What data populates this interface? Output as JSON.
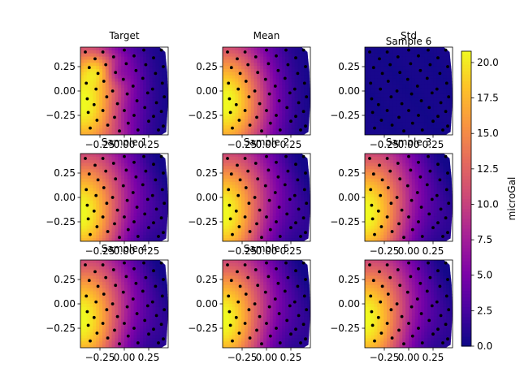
{
  "chart_data": {
    "type": "heatmap",
    "panels": [
      {
        "title": "Target",
        "field": "target"
      },
      {
        "title": "Mean",
        "field": "mean"
      },
      {
        "title": "Std",
        "field": "std",
        "overlay_title": "Sample 6"
      },
      {
        "title": "Sample 1",
        "field": "sample"
      },
      {
        "title": "Sample 2",
        "field": "sample"
      },
      {
        "title": "Sample 3",
        "field": "sample"
      },
      {
        "title": "Sample 4",
        "field": "sample"
      },
      {
        "title": "Sample 5",
        "field": "sample"
      },
      {
        "title": "",
        "field": "sample"
      }
    ],
    "x_range": [
      -0.45,
      0.45
    ],
    "y_range": [
      -0.45,
      0.45
    ],
    "x_ticks": [
      -0.25,
      0.0,
      0.25
    ],
    "x_tick_labels": [
      "−0.25",
      "0.00",
      "0.25"
    ],
    "y_ticks": [
      0.25,
      0.0,
      -0.25
    ],
    "y_tick_labels": [
      "0.25",
      "0.00",
      "−0.25"
    ],
    "colorbar": {
      "label": "microGal",
      "range": [
        0,
        20.8
      ],
      "ticks": [
        0.0,
        2.5,
        5.0,
        7.5,
        10.0,
        12.5,
        15.0,
        17.5,
        20.0
      ],
      "tick_labels": [
        "0.0",
        "2.5",
        "5.0",
        "7.5",
        "10.0",
        "12.5",
        "15.0",
        "17.5",
        "20.0"
      ],
      "colormap": "plasma"
    },
    "observation_points": [
      [
        -0.4,
        0.4
      ],
      [
        -0.36,
        0.24
      ],
      [
        -0.39,
        0.08
      ],
      [
        -0.38,
        -0.08
      ],
      [
        -0.37,
        -0.22
      ],
      [
        -0.35,
        -0.38
      ],
      [
        -0.3,
        0.33
      ],
      [
        -0.27,
        0.18
      ],
      [
        -0.29,
        0.02
      ],
      [
        -0.31,
        -0.14
      ],
      [
        -0.28,
        -0.3
      ],
      [
        -0.22,
        0.4
      ],
      [
        -0.19,
        0.27
      ],
      [
        -0.21,
        0.1
      ],
      [
        -0.18,
        -0.06
      ],
      [
        -0.22,
        -0.2
      ],
      [
        -0.17,
        -0.35
      ],
      [
        -0.11,
        0.35
      ],
      [
        -0.09,
        0.19
      ],
      [
        -0.12,
        0.0
      ],
      [
        -0.07,
        -0.13
      ],
      [
        -0.1,
        -0.27
      ],
      [
        -0.05,
        -0.41
      ],
      [
        0.0,
        0.42
      ],
      [
        0.02,
        0.28
      ],
      [
        -0.01,
        0.12
      ],
      [
        0.03,
        -0.03
      ],
      [
        0.0,
        -0.2
      ],
      [
        0.04,
        -0.33
      ],
      [
        0.1,
        0.36
      ],
      [
        0.12,
        0.21
      ],
      [
        0.09,
        0.05
      ],
      [
        0.13,
        -0.1
      ],
      [
        0.1,
        -0.25
      ],
      [
        0.14,
        -0.4
      ],
      [
        0.2,
        0.42
      ],
      [
        0.22,
        0.27
      ],
      [
        0.19,
        0.13
      ],
      [
        0.24,
        -0.02
      ],
      [
        0.21,
        -0.17
      ],
      [
        0.25,
        -0.31
      ],
      [
        0.3,
        0.34
      ],
      [
        0.32,
        0.18
      ],
      [
        0.29,
        0.02
      ],
      [
        0.33,
        -0.12
      ],
      [
        0.3,
        -0.26
      ],
      [
        0.35,
        -0.4
      ],
      [
        0.38,
        0.42
      ],
      [
        0.4,
        0.25
      ],
      [
        0.39,
        0.08
      ],
      [
        0.41,
        -0.06
      ],
      [
        0.38,
        -0.21
      ],
      [
        0.4,
        -0.36
      ]
    ]
  }
}
